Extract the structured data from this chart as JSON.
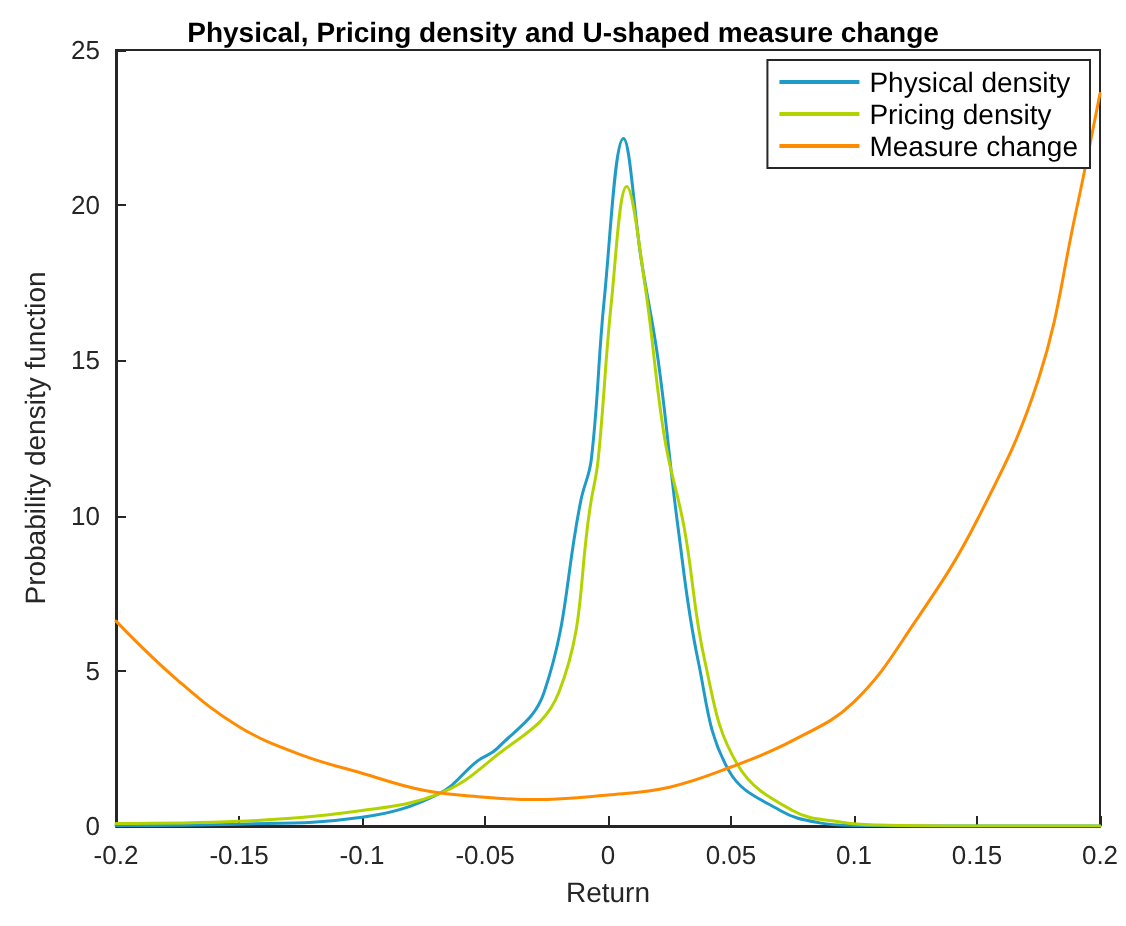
{
  "chart_data": {
    "type": "line",
    "title": "Physical, Pricing density and U-shaped measure change",
    "xlabel": "Return",
    "ylabel": "Probability density function",
    "xlim": [
      -0.2,
      0.2
    ],
    "xticks": [
      -0.2,
      -0.15,
      -0.1,
      -0.05,
      0,
      0.05,
      0.1,
      0.15,
      0.2
    ],
    "ylim": [
      0,
      25
    ],
    "yticks": [
      0,
      5,
      10,
      15,
      20,
      25
    ],
    "grid": false,
    "legend": "top right",
    "marker": "none",
    "line_style": "solid",
    "series": [
      {
        "name": "Physical density",
        "color": "#1f9bc7",
        "x": [
          -0.2,
          -0.15,
          -0.1,
          -0.069,
          -0.053,
          -0.045,
          -0.026,
          -0.011,
          -0.0068,
          -0.0016,
          0.0063,
          0.0136,
          0.0204,
          0.0285,
          0.0367,
          0.049,
          0.07,
          0.086,
          0.1,
          0.15,
          0.2
        ],
        "values": [
          0.02,
          0.06,
          0.28,
          1.03,
          2.1,
          2.5,
          4.3,
          10.5,
          11.8,
          16.9,
          22.15,
          18.2,
          15.0,
          9.6,
          5.3,
          1.8,
          0.5,
          0.1,
          0.02,
          0,
          0
        ]
      },
      {
        "name": "Pricing density",
        "color": "#b3d300",
        "x": [
          -0.2,
          -0.15,
          -0.1,
          -0.069,
          -0.048,
          -0.02,
          -0.0068,
          -0.004,
          0.0014,
          0.0076,
          0.0149,
          0.023,
          0.031,
          0.0394,
          0.0525,
          0.075,
          0.095,
          0.11,
          0.15,
          0.2
        ],
        "values": [
          0.08,
          0.15,
          0.5,
          1.03,
          2.1,
          4.3,
          10.5,
          11.8,
          16.9,
          20.6,
          17.5,
          12.5,
          9.6,
          5.3,
          2.0,
          0.5,
          0.12,
          0.03,
          0,
          0
        ]
      },
      {
        "name": "Measure change",
        "color": "#ff8c00",
        "x": [
          -0.2,
          -0.175,
          -0.15,
          -0.125,
          -0.1,
          -0.075,
          -0.05,
          -0.03,
          0,
          0.025,
          0.05,
          0.075,
          0.1,
          0.125,
          0.15,
          0.175,
          0.19,
          0.2
        ],
        "values": [
          6.6,
          4.7,
          3.2,
          2.3,
          1.7,
          1.15,
          0.93,
          0.85,
          1.0,
          1.25,
          1.9,
          2.75,
          4.0,
          6.6,
          9.85,
          14.4,
          19.7,
          23.6
        ]
      }
    ]
  }
}
